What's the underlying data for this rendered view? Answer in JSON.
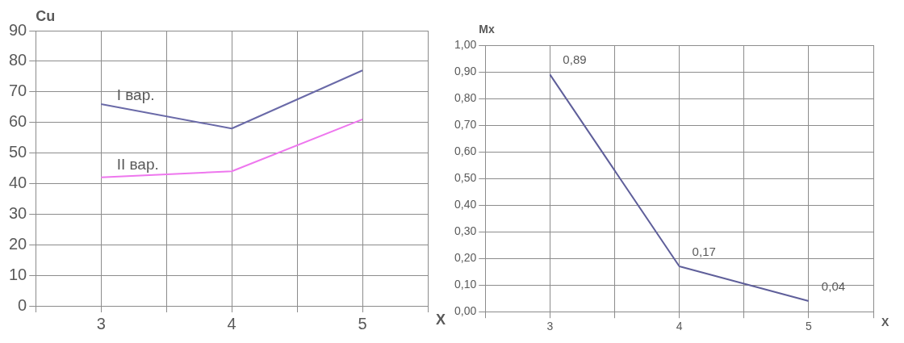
{
  "chart_data": [
    {
      "type": "line",
      "ylabel": "Cu",
      "xlabel": "X",
      "x": [
        3,
        4,
        5
      ],
      "series": [
        {
          "name": "I вар.",
          "color": "#6a6aa8",
          "values": [
            66,
            58,
            77
          ]
        },
        {
          "name": "II вар.",
          "color": "#ee77ee",
          "values": [
            42,
            44,
            61
          ]
        }
      ],
      "xlim": [
        2.5,
        5.5
      ],
      "xticks": [
        {
          "value": 2.5,
          "label": null
        },
        3,
        {
          "value": 3.5,
          "label": null
        },
        4,
        {
          "value": 4.5,
          "label": null
        },
        5,
        {
          "value": 5.5,
          "label": null
        }
      ],
      "ylim": [
        0,
        90
      ],
      "yticks": [
        0,
        10,
        20,
        30,
        40,
        50,
        60,
        70,
        80,
        90
      ],
      "grid": true,
      "legend": false,
      "marker": "none"
    },
    {
      "type": "line",
      "ylabel": "Mx",
      "xlabel": "X",
      "x": [
        3,
        4,
        5
      ],
      "series": [
        {
          "color": "#5f5f9a",
          "values": [
            0.89,
            0.17,
            0.04
          ],
          "value_labels": [
            "0,89",
            "0,17",
            "0,04"
          ]
        }
      ],
      "xlim": [
        2.5,
        5.5
      ],
      "xticks": [
        {
          "value": 2.5,
          "label": null
        },
        3,
        {
          "value": 3.5,
          "label": null
        },
        4,
        {
          "value": 4.5,
          "label": null
        },
        5,
        {
          "value": 5.5,
          "label": null
        }
      ],
      "ylim": [
        0,
        1
      ],
      "yticks": [
        {
          "value": 0,
          "label": "0,00"
        },
        {
          "value": 0.1,
          "label": "0,10"
        },
        {
          "value": 0.2,
          "label": "0,20"
        },
        {
          "value": 0.3,
          "label": "0,30"
        },
        {
          "value": 0.4,
          "label": "0,40"
        },
        {
          "value": 0.5,
          "label": "0,50"
        },
        {
          "value": 0.6,
          "label": "0,60"
        },
        {
          "value": 0.7,
          "label": "0,70"
        },
        {
          "value": 0.8,
          "label": "0,80"
        },
        {
          "value": 0.9,
          "label": "0,90"
        },
        {
          "value": 1,
          "label": "1,00"
        }
      ],
      "grid": true,
      "legend": false,
      "marker": "none"
    }
  ]
}
